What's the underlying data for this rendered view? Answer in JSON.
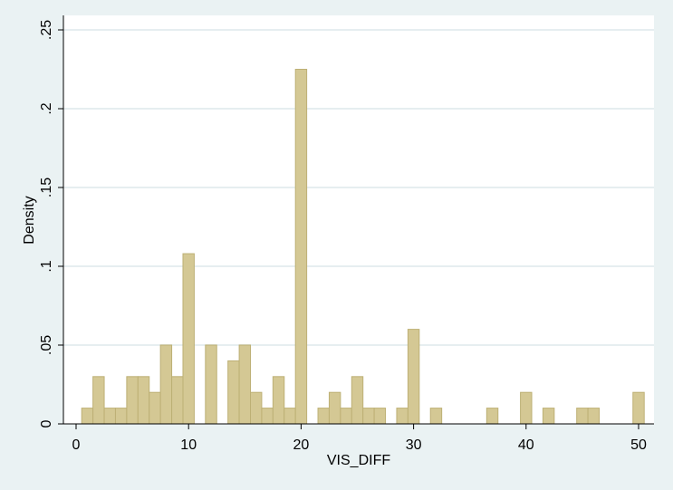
{
  "chart_data": {
    "type": "bar",
    "xlabel": "VIS_DIFF",
    "ylabel": "Density",
    "xlim": [
      0,
      51
    ],
    "ylim": [
      0,
      0.25
    ],
    "x_ticks": [
      0,
      10,
      20,
      30,
      40,
      50
    ],
    "x_tick_labels": [
      "0",
      "10",
      "20",
      "30",
      "40",
      "50"
    ],
    "y_ticks": [
      0,
      0.05,
      0.1,
      0.15,
      0.2,
      0.25
    ],
    "y_tick_labels": [
      "0",
      ".05",
      ".1",
      ".15",
      ".2",
      ".25"
    ],
    "grid": true,
    "bin_width": 1,
    "x": [
      1,
      2,
      3,
      4,
      5,
      6,
      7,
      8,
      9,
      10,
      12,
      14,
      15,
      16,
      17,
      18,
      19,
      20,
      22,
      23,
      24,
      25,
      26,
      27,
      29,
      30,
      32,
      37,
      40,
      42,
      45,
      46,
      50
    ],
    "values": [
      0.01,
      0.03,
      0.01,
      0.01,
      0.03,
      0.03,
      0.02,
      0.05,
      0.03,
      0.108,
      0.05,
      0.04,
      0.05,
      0.02,
      0.01,
      0.03,
      0.01,
      0.225,
      0.01,
      0.02,
      0.01,
      0.03,
      0.01,
      0.01,
      0.01,
      0.06,
      0.01,
      0.01,
      0.02,
      0.01,
      0.01,
      0.01,
      0.02
    ],
    "colors": {
      "background": "#eaf2f3",
      "plot_background": "#ffffff",
      "bar_fill": "#d4c894",
      "bar_stroke": "#bdb075",
      "grid": "#e6eef0",
      "axis": "#000000"
    }
  }
}
